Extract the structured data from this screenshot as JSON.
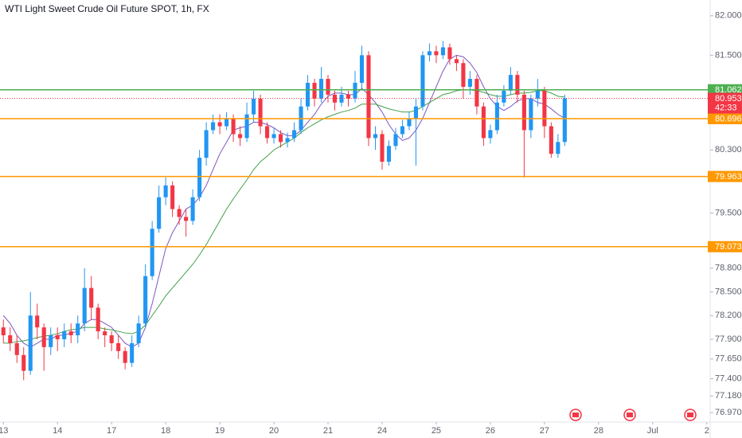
{
  "chart_data": {
    "type": "candlestick",
    "title": "WTI Light Sweet Crude Oil Future SPOT, 1h, FX",
    "up_color": "#2196f3",
    "down_color": "#f23645",
    "open": [
      78.05,
      77.95,
      77.85,
      77.7,
      77.5,
      78.2,
      78.05,
      77.8,
      77.95,
      77.9,
      78.0,
      77.95,
      78.1,
      78.55,
      78.3,
      78.0,
      77.95,
      77.85,
      77.75,
      77.6,
      77.85,
      78.1,
      78.7,
      79.3,
      79.7,
      79.85,
      79.55,
      79.45,
      79.4,
      79.7,
      80.2,
      80.55,
      80.65,
      80.6,
      80.7,
      80.5,
      80.45,
      80.75,
      80.95,
      80.6,
      80.45,
      80.5,
      80.4,
      80.45,
      80.55,
      80.85,
      81.15,
      80.95,
      81.2,
      81.0,
      80.9,
      81.0,
      80.95,
      81.15,
      81.5,
      80.45,
      80.5,
      80.15,
      80.35,
      80.5,
      80.6,
      80.7,
      80.85,
      81.5,
      81.55,
      81.5,
      81.6,
      81.45,
      81.4,
      81.1,
      81.2,
      80.85,
      80.45,
      80.55,
      80.9,
      81.05,
      81.25,
      81.0,
      80.55,
      80.95,
      81.05,
      80.6,
      80.25,
      80.4
    ],
    "high": [
      78.15,
      78.05,
      77.95,
      77.8,
      78.5,
      78.35,
      78.1,
      78.05,
      78.05,
      78.1,
      78.1,
      78.2,
      78.8,
      78.7,
      78.35,
      78.05,
      78.0,
      77.95,
      77.8,
      77.95,
      78.2,
      78.85,
      79.4,
      79.85,
      79.95,
      79.9,
      79.6,
      79.55,
      79.8,
      80.3,
      80.65,
      80.75,
      80.75,
      80.78,
      80.75,
      80.6,
      80.9,
      81.05,
      81.0,
      80.65,
      80.58,
      80.55,
      80.52,
      80.65,
      80.95,
      81.25,
      81.2,
      81.35,
      81.25,
      81.05,
      81.1,
      81.05,
      81.3,
      81.62,
      81.55,
      80.6,
      80.55,
      80.42,
      80.58,
      80.68,
      80.78,
      80.95,
      81.55,
      81.65,
      81.62,
      81.68,
      81.65,
      81.5,
      81.45,
      81.3,
      81.25,
      80.9,
      80.62,
      81.0,
      81.12,
      81.35,
      81.3,
      81.05,
      81.0,
      81.2,
      81.1,
      80.65,
      80.5,
      81.0
    ],
    "low": [
      77.85,
      77.75,
      77.6,
      77.38,
      77.45,
      77.9,
      77.5,
      77.7,
      77.75,
      77.8,
      77.85,
      77.85,
      78.0,
      78.15,
      77.9,
      77.8,
      77.75,
      77.65,
      77.52,
      77.55,
      77.8,
      78.05,
      78.65,
      79.25,
      79.6,
      79.45,
      79.35,
      79.2,
      79.35,
      79.65,
      80.1,
      80.5,
      80.5,
      80.55,
      80.4,
      80.35,
      80.4,
      80.65,
      80.5,
      80.38,
      80.38,
      80.33,
      80.33,
      80.4,
      80.5,
      80.8,
      80.85,
      80.9,
      80.9,
      80.8,
      80.85,
      80.85,
      80.9,
      81.05,
      80.35,
      80.3,
      80.05,
      80.1,
      80.3,
      80.45,
      80.55,
      80.1,
      80.8,
      81.42,
      81.4,
      81.45,
      81.38,
      81.3,
      80.95,
      81.0,
      80.75,
      80.35,
      80.38,
      80.5,
      80.85,
      81.0,
      80.9,
      79.95,
      80.45,
      80.85,
      80.45,
      80.2,
      80.2,
      80.35
    ],
    "close": [
      77.95,
      77.85,
      77.7,
      77.5,
      78.2,
      78.05,
      77.8,
      77.95,
      77.9,
      78.0,
      77.95,
      78.1,
      78.55,
      78.3,
      78.0,
      77.95,
      77.85,
      77.75,
      77.6,
      77.85,
      78.1,
      78.7,
      79.3,
      79.7,
      79.85,
      79.55,
      79.45,
      79.4,
      79.7,
      80.2,
      80.55,
      80.65,
      80.6,
      80.7,
      80.5,
      80.45,
      80.75,
      80.95,
      80.6,
      80.45,
      80.5,
      80.4,
      80.45,
      80.55,
      80.85,
      81.15,
      80.95,
      81.2,
      81.0,
      80.9,
      81.0,
      80.95,
      81.15,
      81.5,
      80.45,
      80.5,
      80.15,
      80.35,
      80.5,
      80.6,
      80.7,
      80.85,
      81.5,
      81.55,
      81.5,
      81.6,
      81.45,
      81.4,
      81.1,
      81.2,
      80.85,
      80.45,
      80.55,
      80.9,
      81.05,
      81.25,
      81.0,
      80.55,
      80.95,
      81.05,
      80.6,
      80.25,
      80.4,
      80.953
    ],
    "series": [
      {
        "color": "#7e57c2",
        "values": [
          78.2,
          78.1,
          77.95,
          77.85,
          77.8,
          77.85,
          77.9,
          77.9,
          77.95,
          77.95,
          77.98,
          78.0,
          78.1,
          78.15,
          78.15,
          78.1,
          78.05,
          77.95,
          77.85,
          77.8,
          77.85,
          78.05,
          78.35,
          78.7,
          79.05,
          79.25,
          79.4,
          79.55,
          79.6,
          79.7,
          79.85,
          80.05,
          80.25,
          80.4,
          80.55,
          80.58,
          80.6,
          80.65,
          80.65,
          80.62,
          80.58,
          80.52,
          80.48,
          80.48,
          80.55,
          80.65,
          80.75,
          80.88,
          80.98,
          81.02,
          81.02,
          81.0,
          81.0,
          81.08,
          81.0,
          80.9,
          80.78,
          80.62,
          80.5,
          80.42,
          80.45,
          80.55,
          80.7,
          80.9,
          81.1,
          81.3,
          81.45,
          81.5,
          81.48,
          81.4,
          81.28,
          81.1,
          80.95,
          80.85,
          80.8,
          80.85,
          80.92,
          80.95,
          80.95,
          80.9,
          80.88,
          80.82,
          80.75,
          80.7
        ]
      },
      {
        "color": "#43a047",
        "values": [
          77.85,
          77.85,
          77.87,
          77.88,
          77.9,
          77.92,
          77.94,
          77.95,
          77.97,
          78.0,
          78.02,
          78.03,
          78.05,
          78.05,
          78.05,
          78.03,
          78.02,
          78.0,
          77.98,
          77.97,
          78.0,
          78.08,
          78.2,
          78.32,
          78.45,
          78.55,
          78.65,
          78.75,
          78.85,
          78.97,
          79.1,
          79.25,
          79.4,
          79.55,
          79.68,
          79.8,
          79.92,
          80.05,
          80.15,
          80.22,
          80.3,
          80.35,
          80.4,
          80.45,
          80.52,
          80.58,
          80.63,
          80.68,
          80.72,
          80.75,
          80.78,
          80.8,
          80.83,
          80.88,
          80.88,
          80.88,
          80.85,
          80.82,
          80.8,
          80.78,
          80.78,
          80.8,
          80.85,
          80.9,
          80.95,
          81.0,
          81.02,
          81.05,
          81.06,
          81.06,
          81.05,
          81.03,
          81.0,
          80.98,
          80.98,
          81.0,
          81.02,
          81.02,
          81.03,
          81.05,
          81.05,
          81.02,
          80.98,
          80.97
        ]
      }
    ],
    "ylim": [
      76.85,
      82.2
    ],
    "yticks": [
      {
        "value": 82,
        "label": "82.000"
      },
      {
        "value": 81.5,
        "label": "81.500"
      },
      {
        "value": 80.3,
        "label": "80.300"
      },
      {
        "value": 79.5,
        "label": "79.500"
      },
      {
        "value": 78.8,
        "label": "78.800"
      },
      {
        "value": 78.5,
        "label": "78.500"
      },
      {
        "value": 78.2,
        "label": "78.200"
      },
      {
        "value": 77.9,
        "label": "77.900"
      },
      {
        "value": 77.65,
        "label": "77.650"
      },
      {
        "value": 77.4,
        "label": "77.400"
      },
      {
        "value": 77.18,
        "label": "77.180"
      },
      {
        "value": 76.97,
        "label": "76.970"
      }
    ],
    "xlim": [
      -0.5,
      104.5
    ],
    "xticks": [
      {
        "value": 0,
        "label": "13"
      },
      {
        "value": 8,
        "label": "14"
      },
      {
        "value": 16,
        "label": "17"
      },
      {
        "value": 24,
        "label": "18"
      },
      {
        "value": 32,
        "label": "19"
      },
      {
        "value": 40,
        "label": "20"
      },
      {
        "value": 48,
        "label": "21"
      },
      {
        "value": 56,
        "label": "24"
      },
      {
        "value": 64,
        "label": "25"
      },
      {
        "value": 72,
        "label": "26"
      },
      {
        "value": 80,
        "label": "27"
      },
      {
        "value": 88,
        "label": "28"
      },
      {
        "value": 96,
        "label": "Jul"
      },
      {
        "value": 104,
        "label": "2"
      }
    ],
    "price_lines": [
      {
        "value": 81.062,
        "color": "#4caf50"
      },
      {
        "value": 80.696,
        "color": "#ff9800"
      },
      {
        "value": 79.963,
        "color": "#ff9800"
      },
      {
        "value": 79.073,
        "color": "#ff9800"
      }
    ],
    "current_price": {
      "value": 80.953,
      "countdown": "42:33",
      "color": "#f23645"
    }
  }
}
